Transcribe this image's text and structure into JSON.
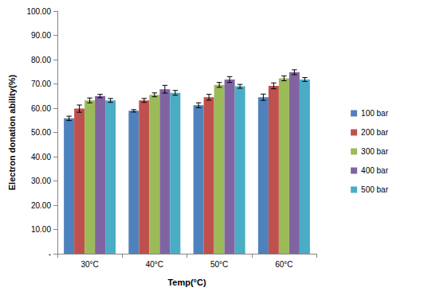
{
  "chart_data": {
    "type": "bar",
    "x_label": "Temp(°C)",
    "y_label": "Electron donation ability(%)",
    "categories": [
      "30°C",
      "40°C",
      "50°C",
      "60°C"
    ],
    "series": [
      {
        "name": "100 bar",
        "color": "#4F81BD",
        "values": [
          55.8,
          58.9,
          61.2,
          64.5
        ],
        "errors": [
          0.9,
          0.5,
          1.0,
          1.3
        ]
      },
      {
        "name": "200 bar",
        "color": "#C0504D",
        "values": [
          59.8,
          63.2,
          64.5,
          69.2
        ],
        "errors": [
          1.5,
          0.8,
          1.2,
          1.2
        ]
      },
      {
        "name": "300 bar",
        "color": "#9BBB59",
        "values": [
          63.2,
          65.5,
          69.6,
          72.3
        ],
        "errors": [
          1.0,
          0.8,
          1.0,
          1.0
        ]
      },
      {
        "name": "400 bar",
        "color": "#8064A2",
        "values": [
          65.0,
          67.8,
          71.8,
          74.8
        ],
        "errors": [
          0.7,
          1.6,
          1.2,
          1.0
        ]
      },
      {
        "name": "500 bar",
        "color": "#4BACC6",
        "values": [
          63.2,
          66.3,
          69.0,
          71.8
        ],
        "errors": [
          0.8,
          1.0,
          0.8,
          0.8
        ]
      }
    ],
    "ylim": [
      0,
      100
    ],
    "yticks": [
      {
        "value": 0,
        "label": "-"
      },
      {
        "value": 10,
        "label": "10.00"
      },
      {
        "value": 20,
        "label": "20.00"
      },
      {
        "value": 30,
        "label": "30.00"
      },
      {
        "value": 40,
        "label": "40.00"
      },
      {
        "value": 50,
        "label": "50.00"
      },
      {
        "value": 60,
        "label": "60.00"
      },
      {
        "value": 70,
        "label": "70.00"
      },
      {
        "value": 80,
        "label": "80.00"
      },
      {
        "value": 90,
        "label": "90.00"
      },
      {
        "value": 100,
        "label": "100.00"
      }
    ],
    "grid": false,
    "legend": "right"
  }
}
